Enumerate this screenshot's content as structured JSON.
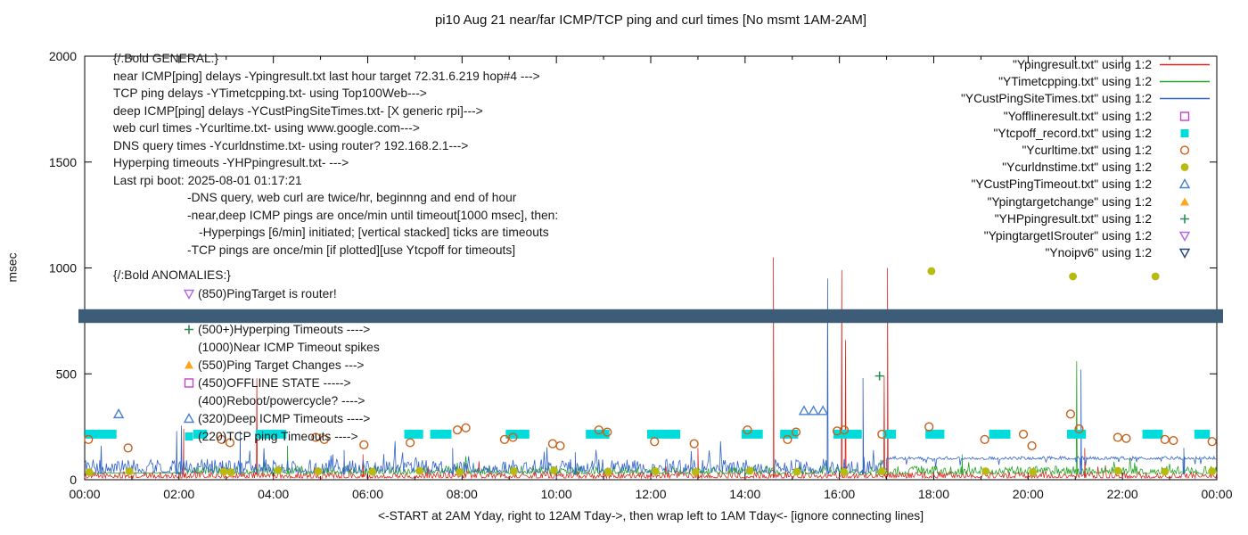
{
  "title": "pi10 Aug 21  near/far ICMP/TCP ping and curl times [No msmt 1AM-2AM]",
  "axes": {
    "ylabel": "msec",
    "xlabel": "<-START at 2AM Yday, right to 12AM Tday->, then wrap left to 1AM Tday<- [ignore connecting lines]",
    "yticks": [
      0,
      500,
      1000,
      1500,
      2000
    ],
    "xticks": [
      "00:00",
      "02:00",
      "04:00",
      "06:00",
      "08:00",
      "10:00",
      "12:00",
      "14:00",
      "16:00",
      "18:00",
      "20:00",
      "22:00",
      "00:00"
    ]
  },
  "general": [
    {
      "t": "{/:Bold GENERAL:}",
      "i": 0
    },
    {
      "t": "near ICMP[ping] delays -Ypingresult.txt last hour target 72.31.6.219 hop#4 --->",
      "i": 0
    },
    {
      "t": "TCP ping delays -YTimetcpping.txt- using Top100Web--->",
      "i": 0
    },
    {
      "t": "deep ICMP[ping] delays -YCustPingSiteTimes.txt- [X generic rpi]--->",
      "i": 0
    },
    {
      "t": "web curl times -Ycurltime.txt- using www.google.com--->",
      "i": 0
    },
    {
      "t": "DNS query times -Ycurldnstime.txt- using router? 192.168.2.1--->",
      "i": 0
    },
    {
      "t": "Hyperping timeouts -YHPpingresult.txt- --->",
      "i": 0
    },
    {
      "t": "Last rpi boot: 2025-08-01 01:17:21",
      "i": 0
    },
    {
      "t": "-DNS query, web curl are twice/hr, beginnng and end of hour",
      "i": 83
    },
    {
      "t": "-near,deep ICMP pings are once/min until timeout[1000 msec], then:",
      "i": 83
    },
    {
      "t": "-Hyperpings [6/min] initiated; [vertical stacked] ticks are timeouts",
      "i": 96
    },
    {
      "t": "-TCP pings are once/min [if plotted][use Ytcpoff for timeouts]",
      "i": 83
    }
  ],
  "anomalies": {
    "header": "{/:Bold ANOMALIES:}",
    "items": [
      {
        "marker": "down-triangle-open",
        "color": "#b464e6",
        "text": "(850)PingTarget is router!"
      },
      {
        "marker": "none",
        "color": "",
        "text": ""
      },
      {
        "marker": "plus",
        "color": "#2d8c57",
        "text": "(500+)Hyperping Timeouts ---->"
      },
      {
        "marker": "none",
        "color": "",
        "text": "(1000)Near ICMP Timeout spikes"
      },
      {
        "marker": "triangle-filled",
        "color": "#ffa51e",
        "text": "(550)Ping Target Changes --->"
      },
      {
        "marker": "square-open",
        "color": "#c840c8",
        "text": "(450)OFFLINE STATE ----->"
      },
      {
        "marker": "none",
        "color": "",
        "text": "(400)Reboot/powercycle? ---->"
      },
      {
        "marker": "triangle-open",
        "color": "#4a80d0",
        "text": "(320)Deep ICMP Timeouts ---->"
      },
      {
        "marker": "square-filled",
        "color": "#00dcdc",
        "text": "(220)TCP ping Timeouts ---->"
      }
    ]
  },
  "legend": [
    {
      "label": "\"Ypingresult.txt\" using 1:2",
      "sample": "line",
      "color": "#dd2820"
    },
    {
      "label": "\"YTimetcpping.txt\" using 1:2",
      "sample": "line",
      "color": "#28a428"
    },
    {
      "label": "\"YCustPingSiteTimes.txt\" using 1:2",
      "sample": "line",
      "color": "#3465c8"
    },
    {
      "label": "\"Yofflineresult.txt\" using 1:2",
      "sample": "square-open",
      "color": "#c840c8"
    },
    {
      "label": "\"Ytcpoff_record.txt\" using 1:2",
      "sample": "square-filled",
      "color": "#00dcdc"
    },
    {
      "label": "\"Ycurltime.txt\" using 1:2",
      "sample": "circle-open",
      "color": "#c85f1a"
    },
    {
      "label": "\"Ycurldnstime.txt\" using 1:2",
      "sample": "circle-filled",
      "color": "#b8ba10"
    },
    {
      "label": "\"YCustPingTimeout.txt\" using 1:2",
      "sample": "triangle-open",
      "color": "#4a80d0"
    },
    {
      "label": "\"Ypingtargetchange\" using 1:2",
      "sample": "triangle-filled",
      "color": "#ffa51e"
    },
    {
      "label": "\"YHPpingresult.txt\" using 1:2",
      "sample": "plus",
      "color": "#2d8c57"
    },
    {
      "label": "\"YpingtargetISrouter\" using 1:2",
      "sample": "down-triangle-open",
      "color": "#b464e6"
    },
    {
      "label": "\"Ynoipv6\" using 1:2",
      "sample": "down-triangle-open",
      "color": "#24427a"
    }
  ],
  "chart_data": {
    "type": "line",
    "x_unit": "hours since axis start (00:00 tick = 2AM yesterday)",
    "xlim": [
      0,
      24
    ],
    "ylim": [
      0,
      2000
    ],
    "grid": false,
    "legend_position": "top-right",
    "series": [
      {
        "name": "Ypingresult.txt",
        "style": "line",
        "color": "#dd2820",
        "baseline": [
          {
            "from": 0,
            "to": 24,
            "base": 8,
            "amp": 30,
            "p": 0.02,
            "pamp": 70
          }
        ],
        "spikes": [
          [
            2.1,
            240
          ],
          [
            3.65,
            480
          ],
          [
            5.9,
            120
          ],
          [
            13.0,
            150
          ],
          [
            14.6,
            1050
          ],
          [
            16.05,
            990
          ],
          [
            16.13,
            660
          ],
          [
            16.95,
            490
          ],
          [
            17.02,
            1000
          ],
          [
            21.2,
            150
          ]
        ]
      },
      {
        "name": "YTimetcpping.txt",
        "style": "line",
        "color": "#28a428",
        "baseline": [
          {
            "from": 0,
            "to": 2,
            "base": 30,
            "amp": 5,
            "p": 0,
            "pamp": 0
          },
          {
            "from": 2,
            "to": 24,
            "base": 27,
            "amp": 38,
            "p": 0.02,
            "pamp": 60
          }
        ],
        "spikes": [
          [
            4.3,
            160
          ],
          [
            18.6,
            120
          ],
          [
            21.03,
            560
          ]
        ]
      },
      {
        "name": "YCustPingSiteTimes.txt",
        "style": "line",
        "color": "#3465c8",
        "baseline": [
          {
            "from": 0,
            "to": 17,
            "base": 33,
            "amp": 65,
            "p": 0.04,
            "pamp": 110
          },
          {
            "from": 17,
            "to": 24,
            "base": 96,
            "amp": 14,
            "p": 0.06,
            "pamp": -45
          }
        ],
        "spikes": [
          [
            0.35,
            160
          ],
          [
            1.95,
            230
          ],
          [
            2.05,
            255
          ],
          [
            3.3,
            230
          ],
          [
            5.5,
            140
          ],
          [
            7.8,
            150
          ],
          [
            10.4,
            130
          ],
          [
            15.75,
            950
          ],
          [
            16.5,
            480
          ],
          [
            21.12,
            520
          ],
          [
            23.3,
            150
          ]
        ]
      },
      {
        "name": "Yofflineresult.txt",
        "style": "scatter",
        "marker": "square-open",
        "color": "#c840c8",
        "points": []
      },
      {
        "name": "Ytcpoff_record.txt",
        "style": "bar-cluster",
        "marker": "square-filled",
        "color": "#00dcdc",
        "y": 215,
        "clusters": [
          [
            0.08,
            0.6
          ],
          [
            2.38,
            2.52
          ],
          [
            3.7,
            4.2
          ],
          [
            6.85,
            7.1
          ],
          [
            7.4,
            7.7
          ],
          [
            9.0,
            9.35
          ],
          [
            10.7,
            11.05
          ],
          [
            12.0,
            12.55
          ],
          [
            14.0,
            14.3
          ],
          [
            14.82,
            15.05
          ],
          [
            15.95,
            16.4
          ],
          [
            17.0,
            17.12
          ],
          [
            17.9,
            18.15
          ],
          [
            19.25,
            19.55
          ],
          [
            20.9,
            21.15
          ],
          [
            22.5,
            22.78
          ],
          [
            23.6,
            23.78
          ]
        ]
      },
      {
        "name": "Ycurltime.txt",
        "style": "scatter",
        "marker": "circle-open",
        "color": "#c85f1a",
        "points": [
          [
            0.08,
            190
          ],
          [
            0.92,
            150
          ],
          [
            2.9,
            190
          ],
          [
            3.08,
            175
          ],
          [
            4.9,
            200
          ],
          [
            5.08,
            190
          ],
          [
            5.92,
            165
          ],
          [
            6.9,
            175
          ],
          [
            7.9,
            235
          ],
          [
            8.08,
            245
          ],
          [
            8.9,
            190
          ],
          [
            9.08,
            200
          ],
          [
            9.92,
            170
          ],
          [
            10.08,
            160
          ],
          [
            10.9,
            235
          ],
          [
            11.08,
            225
          ],
          [
            12.08,
            180
          ],
          [
            12.92,
            170
          ],
          [
            14.05,
            235
          ],
          [
            14.9,
            190
          ],
          [
            15.08,
            225
          ],
          [
            15.95,
            230
          ],
          [
            16.1,
            235
          ],
          [
            16.9,
            215
          ],
          [
            17.9,
            250
          ],
          [
            19.08,
            190
          ],
          [
            19.9,
            215
          ],
          [
            20.08,
            160
          ],
          [
            20.9,
            310
          ],
          [
            21.08,
            240
          ],
          [
            21.9,
            200
          ],
          [
            22.08,
            195
          ],
          [
            22.9,
            190
          ],
          [
            23.08,
            185
          ],
          [
            23.9,
            180
          ]
        ]
      },
      {
        "name": "Ycurldnstime.txt",
        "style": "scatter",
        "marker": "circle-filled",
        "color": "#b8ba10",
        "points": [
          [
            0.1,
            35
          ],
          [
            0.95,
            40
          ],
          [
            2.95,
            38
          ],
          [
            3.1,
            35
          ],
          [
            4.1,
            45
          ],
          [
            4.95,
            40
          ],
          [
            6.1,
            38
          ],
          [
            7.1,
            42
          ],
          [
            7.95,
            36
          ],
          [
            9.1,
            40
          ],
          [
            9.95,
            44
          ],
          [
            11.1,
            38
          ],
          [
            12.1,
            40
          ],
          [
            12.95,
            36
          ],
          [
            14.1,
            42
          ],
          [
            15.1,
            38
          ],
          [
            16.1,
            36
          ],
          [
            16.9,
            40
          ],
          [
            19.1,
            40
          ],
          [
            20.1,
            36
          ],
          [
            21.9,
            42
          ],
          [
            22.9,
            38
          ],
          [
            23.9,
            40
          ],
          [
            17.95,
            985
          ],
          [
            20.95,
            960
          ],
          [
            22.7,
            960
          ]
        ]
      },
      {
        "name": "YCustPingTimeout.txt",
        "style": "scatter",
        "marker": "triangle-open",
        "color": "#4a80d0",
        "points": [
          [
            0.72,
            310
          ],
          [
            15.25,
            325
          ],
          [
            15.45,
            325
          ],
          [
            15.65,
            325
          ]
        ]
      },
      {
        "name": "Ypingtargetchange",
        "style": "scatter",
        "marker": "triangle-filled",
        "color": "#ffa51e",
        "points": []
      },
      {
        "name": "YHPpingresult.txt",
        "style": "scatter",
        "marker": "plus",
        "color": "#2d8c57",
        "points": [
          [
            16.85,
            490
          ]
        ]
      },
      {
        "name": "YpingtargetISrouter",
        "style": "scatter",
        "marker": "down-triangle-open",
        "color": "#b464e6",
        "points": []
      },
      {
        "name": "Ynoipv6",
        "style": "band",
        "marker": "down-triangle-open",
        "color": "#3d5c78",
        "band": {
          "y_top": 805,
          "y_bottom": 740
        }
      }
    ]
  }
}
